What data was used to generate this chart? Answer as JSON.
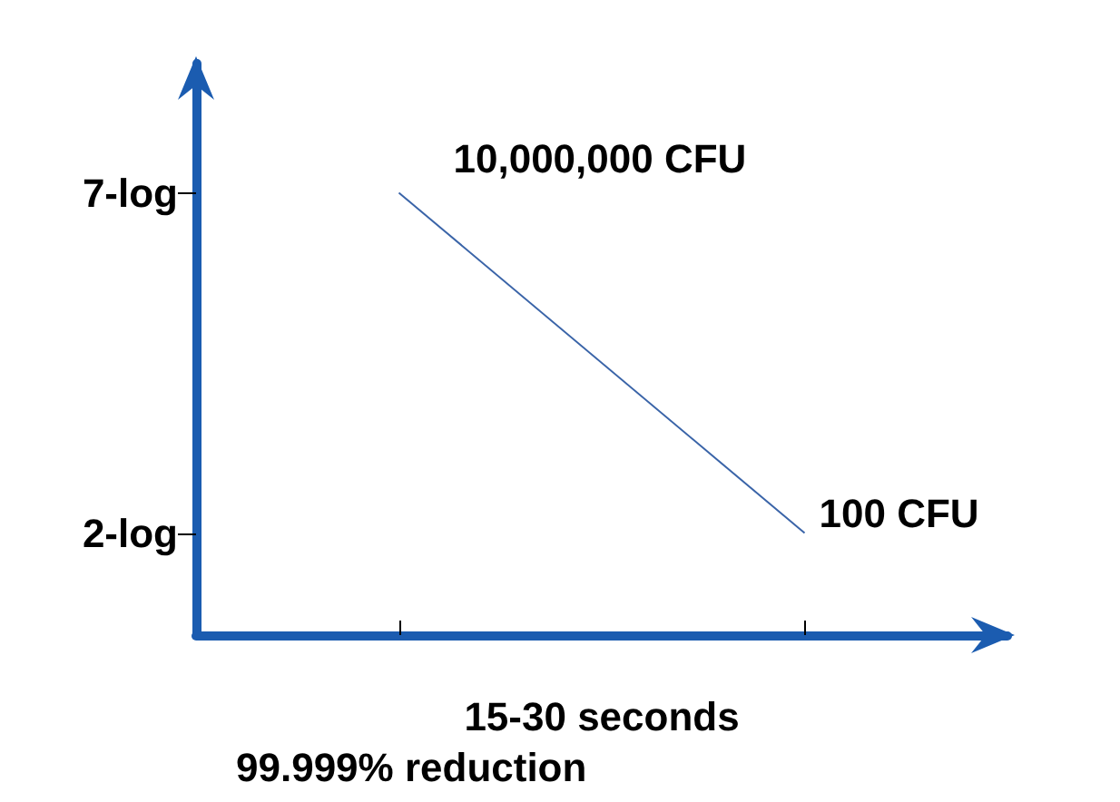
{
  "chart_data": {
    "type": "line",
    "xlabel": "15-30 seconds",
    "categories": [
      null,
      null
    ],
    "series": [
      {
        "color": "#3a64a8",
        "values": [
          7,
          2
        ]
      }
    ],
    "ylim": [
      0.5,
      8.9
    ],
    "yticks": [
      {
        "value": 7,
        "label": "7-log"
      },
      {
        "value": 2,
        "label": "2-log"
      }
    ],
    "marker": "none",
    "grid": false,
    "annotations": [
      "10,000,000 CFU",
      "100 CFU",
      "99.999% reduction"
    ]
  }
}
